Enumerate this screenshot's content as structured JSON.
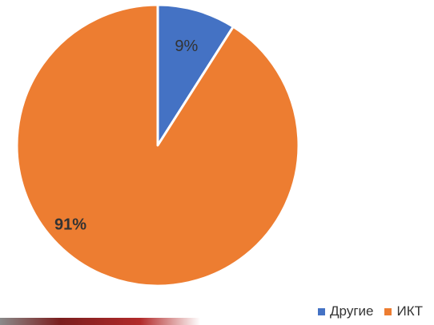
{
  "chart_data": {
    "type": "pie",
    "categories": [
      "Другие",
      "ИКТ"
    ],
    "values": [
      9,
      91
    ],
    "data_labels": [
      "9%",
      "91%"
    ],
    "colors": [
      "#4472c4",
      "#ed7d31"
    ],
    "legend_position": "bottom-right",
    "start_angle": "top",
    "direction": "clockwise"
  },
  "legend": {
    "items": [
      {
        "label": "Другие",
        "color": "#4472c4"
      },
      {
        "label": "ИКТ",
        "color": "#ed7d31"
      }
    ]
  }
}
